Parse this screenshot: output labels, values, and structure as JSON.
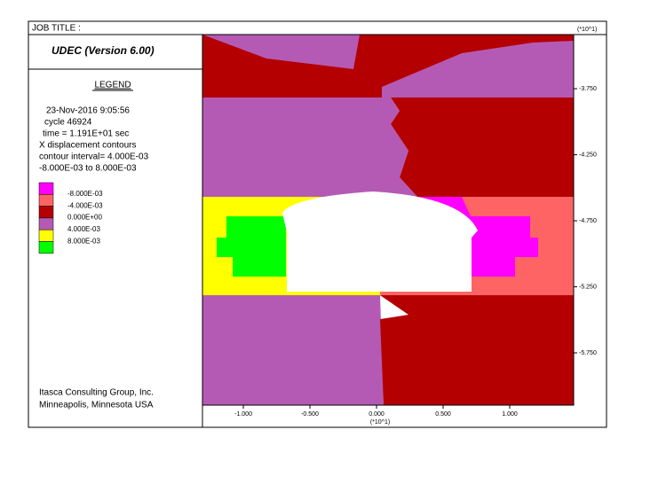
{
  "chart_data": {
    "type": "contour",
    "job_title": "JOB TITLE :",
    "program": "UDEC (Version 6.00)",
    "legend_title": "LEGEND",
    "info": [
      "23-Nov-2016  9:05:56",
      "cycle    46924",
      "time  =  1.191E+01 sec",
      "X displacement contours",
      "contour interval= 4.000E-03",
      "-8.000E-03 to  8.000E-03"
    ],
    "colors": [
      "#ff00ff",
      "#ff6464",
      "#b40000",
      "#b45ab4",
      "#ffff00",
      "#00ff00"
    ],
    "levels": [
      {
        "value": -0.008,
        "label": "-8.000E-03"
      },
      {
        "value": -0.004,
        "label": "-4.000E-03"
      },
      {
        "value": 0,
        "label": "0.000E+00"
      },
      {
        "value": 0.004,
        "label": "4.000E-03"
      },
      {
        "value": 0.008,
        "label": "8.000E-03"
      }
    ],
    "footer": [
      "Itasca Consulting Group, Inc.",
      "Minneapolis, Minnesota  USA"
    ],
    "x_multiplier": "(*10^1)",
    "y_multiplier": "(*10^1)",
    "xlim": [
      -1.307,
      1.48
    ],
    "ylim": [
      -6.146,
      -3.34
    ],
    "xticks": [
      {
        "value": -1,
        "label": "-1.000"
      },
      {
        "value": -0.5,
        "label": "-0.500"
      },
      {
        "value": 0,
        "label": "0.000"
      },
      {
        "value": 0.5,
        "label": "0.500"
      },
      {
        "value": 1,
        "label": "1.000"
      }
    ],
    "yticks": [
      {
        "value": -3.75,
        "label": "-3.750"
      },
      {
        "value": -4.25,
        "label": "-4.250"
      },
      {
        "value": -4.75,
        "label": "-4.750"
      },
      {
        "value": -5.25,
        "label": "-5.250"
      },
      {
        "value": -5.75,
        "label": "-5.750"
      }
    ]
  }
}
